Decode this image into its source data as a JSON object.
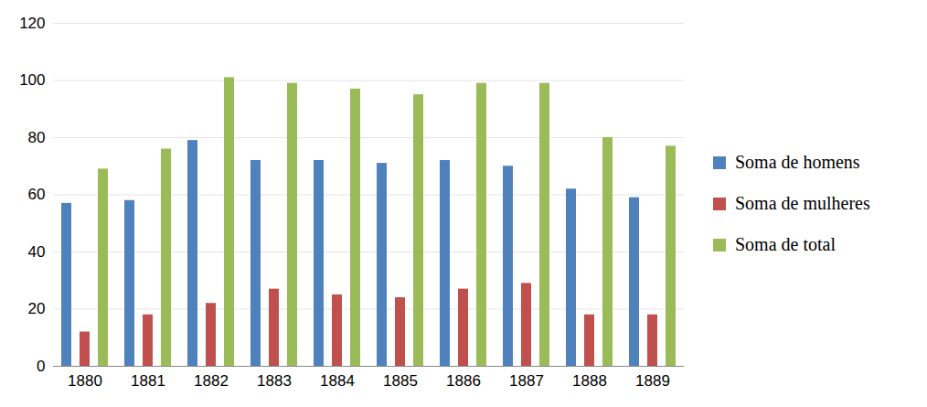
{
  "chart_data": {
    "type": "bar",
    "categories": [
      "1880",
      "1881",
      "1882",
      "1883",
      "1884",
      "1885",
      "1886",
      "1887",
      "1888",
      "1889"
    ],
    "series": [
      {
        "name": "Soma de homens",
        "color": "#4f81bd",
        "values": [
          57,
          58,
          79,
          72,
          72,
          71,
          72,
          70,
          62,
          59
        ]
      },
      {
        "name": "Soma de mulheres",
        "color": "#c0504d",
        "values": [
          12,
          18,
          22,
          27,
          25,
          24,
          27,
          29,
          18,
          18
        ]
      },
      {
        "name": "Soma de total",
        "color": "#9bbb59",
        "values": [
          69,
          76,
          101,
          99,
          97,
          95,
          99,
          99,
          80,
          77
        ]
      }
    ],
    "ylim": [
      0,
      120
    ],
    "yticks": [
      0,
      20,
      40,
      60,
      80,
      100,
      120
    ],
    "grid": true,
    "legend": "right"
  }
}
